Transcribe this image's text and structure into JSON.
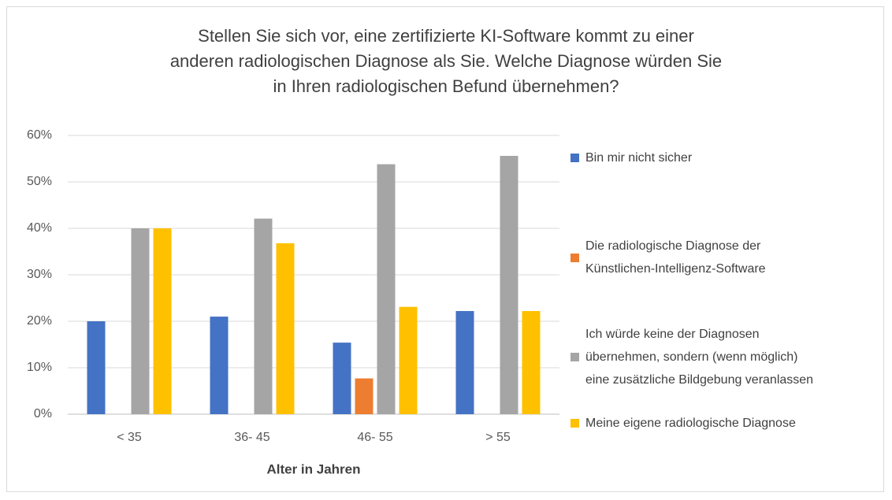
{
  "chart_data": {
    "type": "bar",
    "title": "Stellen Sie sich vor, eine zertifizierte KI-Software kommt zu einer\nanderen radiologischen Diagnose als Sie. Welche Diagnose würden Sie\nin Ihren radiologischen Befund übernehmen?",
    "x_label": "Alter in Jahren",
    "categories": [
      "< 35",
      "36- 45",
      "46- 55",
      "> 55"
    ],
    "series": [
      {
        "name": "Bin mir nicht sicher",
        "color": "#4472c4",
        "values": [
          20,
          21,
          15.4,
          22.2
        ]
      },
      {
        "name": "Die radiologische Diagnose der\nKünstlichen-Intelligenz-Software",
        "color": "#ed7d31",
        "values": [
          0,
          0,
          7.7,
          0
        ]
      },
      {
        "name": "Ich würde keine der Diagnosen\nübernehmen, sondern (wenn möglich)\neine zusätzliche Bildgebung veranlassen",
        "color": "#a5a5a5",
        "values": [
          40,
          42.1,
          53.8,
          55.6
        ]
      },
      {
        "name": "Meine eigene radiologische Diagnose",
        "color": "#ffc000",
        "values": [
          40,
          36.8,
          23.1,
          22.2
        ]
      }
    ],
    "ylim": [
      0,
      60
    ],
    "yticks": [
      {
        "value": 0,
        "label": "0%"
      },
      {
        "value": 10,
        "label": "10%"
      },
      {
        "value": 20,
        "label": "20%"
      },
      {
        "value": 30,
        "label": "30%"
      },
      {
        "value": 40,
        "label": "40%"
      },
      {
        "value": 50,
        "label": "50%"
      },
      {
        "value": 60,
        "label": "60%"
      }
    ],
    "grid": true,
    "legend": "right"
  }
}
